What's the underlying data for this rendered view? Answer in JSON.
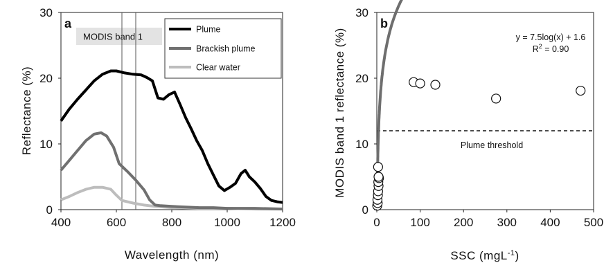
{
  "chart_data": [
    {
      "type": "line",
      "panel_label": "a",
      "xlabel": "Wavelength (nm)",
      "ylabel": "Reflectance (%)",
      "xlim": [
        400,
        1200
      ],
      "ylim": [
        0,
        30
      ],
      "xticks": [
        400,
        600,
        800,
        1000,
        1200
      ],
      "yticks": [
        0,
        10,
        20,
        30
      ],
      "band_label": "MODIS band 1",
      "band_lines_nm": [
        620,
        670
      ],
      "legend_placement": "top-right",
      "series": [
        {
          "name": "Plume",
          "color": "#000000",
          "x": [
            400,
            430,
            460,
            490,
            520,
            550,
            580,
            600,
            630,
            660,
            690,
            710,
            730,
            750,
            770,
            790,
            810,
            830,
            850,
            870,
            890,
            910,
            930,
            950,
            970,
            990,
            1010,
            1030,
            1050,
            1065,
            1080,
            1100,
            1120,
            1140,
            1160,
            1180,
            1200
          ],
          "y": [
            13.5,
            15.3,
            16.8,
            18.2,
            19.6,
            20.6,
            21.1,
            21.1,
            20.8,
            20.6,
            20.5,
            20.1,
            19.6,
            17.0,
            16.8,
            17.5,
            17.9,
            16.0,
            14.0,
            12.3,
            10.5,
            9.0,
            7.0,
            5.3,
            3.6,
            2.9,
            3.4,
            4.0,
            5.5,
            6.0,
            5.0,
            4.2,
            3.2,
            2.0,
            1.4,
            1.2,
            1.1
          ]
        },
        {
          "name": "Brackish plume",
          "color": "#707070",
          "x": [
            400,
            430,
            460,
            490,
            520,
            545,
            565,
            590,
            610,
            640,
            670,
            700,
            720,
            740,
            760,
            800,
            850,
            900,
            950,
            1000,
            1100,
            1200
          ],
          "y": [
            6.0,
            7.5,
            9.0,
            10.5,
            11.5,
            11.7,
            11.2,
            9.5,
            7.0,
            5.8,
            4.5,
            3.0,
            1.5,
            0.7,
            0.6,
            0.5,
            0.4,
            0.3,
            0.3,
            0.2,
            0.2,
            0.1
          ]
        },
        {
          "name": "Clear water",
          "color": "#bdbdbd",
          "x": [
            400,
            430,
            460,
            490,
            520,
            550,
            580,
            600,
            620,
            660,
            700,
            740,
            800,
            900,
            1000,
            1100,
            1200
          ],
          "y": [
            1.5,
            2.0,
            2.6,
            3.1,
            3.4,
            3.4,
            3.1,
            2.2,
            1.4,
            1.0,
            0.7,
            0.5,
            0.3,
            0.2,
            0.2,
            0.1,
            0.1
          ]
        }
      ]
    },
    {
      "type": "scatter",
      "panel_label": "b",
      "xlabel": "SSC (mgL",
      "xlabel_sup": "-1",
      "xlabel_end": ")",
      "ylabel": "MODIS band 1 reflectance (%)",
      "xlim": [
        0,
        500
      ],
      "ylim": [
        0,
        30
      ],
      "xticks": [
        0,
        100,
        200,
        300,
        400,
        500
      ],
      "yticks": [
        0,
        10,
        20,
        30
      ],
      "equation": "y = 7.5log(x) + 1.6",
      "r2_label": "R",
      "r2_sup": "2",
      "r2_value": " = 0.90",
      "threshold_value": 12,
      "threshold_label": "Plume threshold",
      "fit": {
        "a": 7.5,
        "b": 1.6,
        "x_from": 0.6,
        "x_to": 470,
        "color": "#6e6e6e"
      },
      "points": {
        "x": [
          1,
          2,
          1.5,
          2.5,
          3,
          4,
          3.5,
          5,
          4,
          3,
          85,
          100,
          135,
          275,
          470
        ],
        "y": [
          0.6,
          1.0,
          1.5,
          2.2,
          2.8,
          3.6,
          4.2,
          4.8,
          5.0,
          6.5,
          19.4,
          19.2,
          19.0,
          16.9,
          18.1
        ]
      }
    }
  ]
}
